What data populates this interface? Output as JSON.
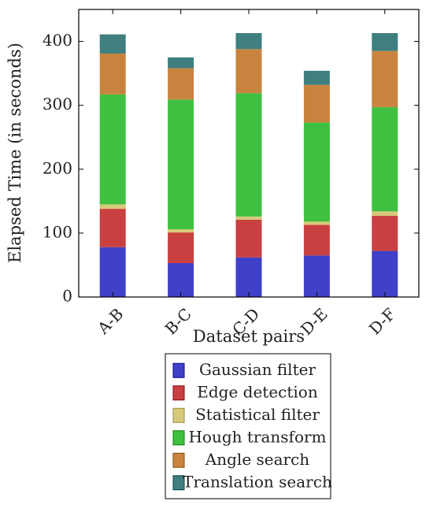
{
  "chart_data": {
    "type": "bar",
    "stacked": true,
    "title": "",
    "xlabel": "Dataset pairs",
    "ylabel": "Elapsed Time (in seconds)",
    "categories": [
      "A-B",
      "B-C",
      "C-D",
      "D-E",
      "D-F"
    ],
    "ylim": [
      0,
      450
    ],
    "yticks": [
      0,
      100,
      200,
      300,
      400
    ],
    "grid": false,
    "legend_position": "below",
    "series": [
      {
        "name": "Gaussian filter",
        "color": "#4040c8",
        "values": [
          78,
          53,
          62,
          65,
          72
        ]
      },
      {
        "name": "Edge detection",
        "color": "#c84040",
        "values": [
          60,
          48,
          59,
          48,
          55
        ]
      },
      {
        "name": "Statistical filter",
        "color": "#d7c97a",
        "values": [
          7,
          5,
          5,
          5,
          7
        ]
      },
      {
        "name": "Hough transform",
        "color": "#40c040",
        "values": [
          172,
          203,
          193,
          155,
          163
        ]
      },
      {
        "name": "Angle search",
        "color": "#c8843f",
        "values": [
          64,
          49,
          69,
          59,
          88
        ]
      },
      {
        "name": "Translation search",
        "color": "#3f7f7f",
        "values": [
          30,
          17,
          25,
          22,
          28
        ]
      }
    ]
  }
}
